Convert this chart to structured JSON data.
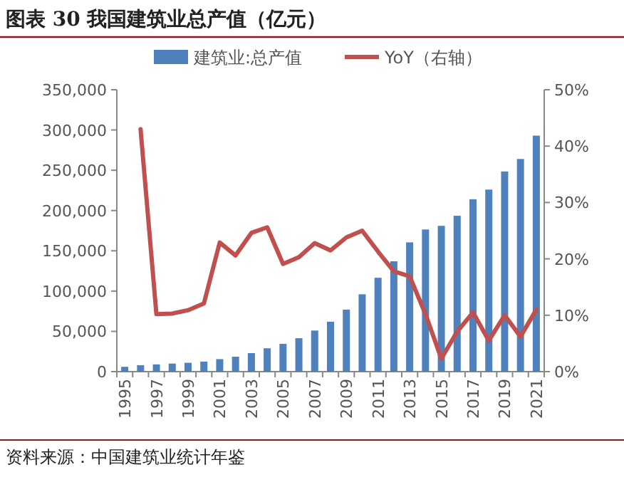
{
  "chart_data": {
    "type": "bar",
    "title": "图表 30  我国建筑业总产值（亿元）",
    "categories": [
      "1995",
      null,
      "1997",
      null,
      "1999",
      null,
      "2001",
      null,
      "2003",
      null,
      "2005",
      null,
      "2007",
      null,
      "2009",
      null,
      "2011",
      null,
      "2013",
      null,
      "2015",
      null,
      "2017",
      null,
      "2019",
      null,
      "2021"
    ],
    "series": [
      {
        "name": "建筑业:总产值",
        "color": "#4f81bd",
        "values": [
          6000,
          8000,
          9000,
          10000,
          11000,
          12500,
          15500,
          18500,
          23000,
          29000,
          34500,
          41500,
          51000,
          62000,
          77000,
          96000,
          116500,
          137000,
          160500,
          176500,
          181000,
          193500,
          214000,
          226000,
          248500,
          264000,
          293000
        ]
      },
      {
        "name": "YoY（右轴）",
        "type": "line",
        "axis": "y2",
        "color": "#c0504d",
        "values": [
          null,
          43,
          10.2,
          10.3,
          10.9,
          12.1,
          22.9,
          20.6,
          24.6,
          25.6,
          19.1,
          20.3,
          22.8,
          21.5,
          23.8,
          25.0,
          21.3,
          17.8,
          16.9,
          10.2,
          2.3,
          7.1,
          10.5,
          5.5,
          10.0,
          6.2,
          11.0
        ]
      }
    ],
    "ylim": [
      0,
      350000
    ],
    "yticks": [
      {
        "value": 0,
        "label": "0"
      },
      {
        "value": 50000,
        "label": "50,000"
      },
      {
        "value": 100000,
        "label": "100,000"
      },
      {
        "value": 150000,
        "label": "150,000"
      },
      {
        "value": 200000,
        "label": "200,000"
      },
      {
        "value": 250000,
        "label": "250,000"
      },
      {
        "value": 300000,
        "label": "300,000"
      },
      {
        "value": 350000,
        "label": "350,000"
      }
    ],
    "y2lim": [
      0,
      50
    ],
    "y2ticks": [
      {
        "value": 0,
        "label": "0%"
      },
      {
        "value": 10,
        "label": "10%"
      },
      {
        "value": 20,
        "label": "20%"
      },
      {
        "value": 30,
        "label": "30%"
      },
      {
        "value": 40,
        "label": "40%"
      },
      {
        "value": 50,
        "label": "50%"
      }
    ],
    "legend": "top",
    "grid": false,
    "annotations": [
      "资料来源：中国建筑业统计年鉴"
    ]
  }
}
